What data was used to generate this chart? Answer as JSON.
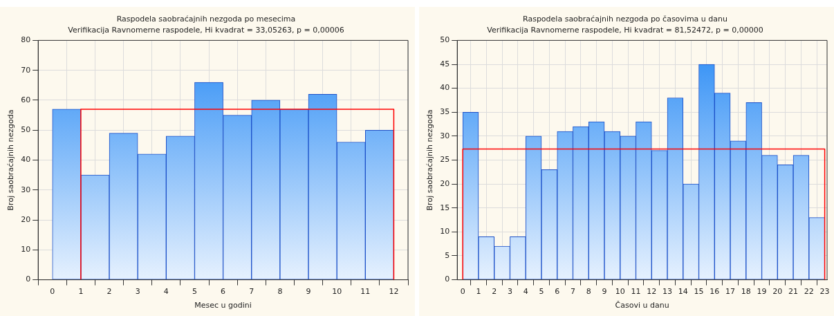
{
  "chart_data": [
    {
      "type": "histogram",
      "title": "Raspodela saobraćajnih nezgoda po mesecima",
      "subtitle": "Verifikacija Ravnomerne raspodele, Hi kvadrat = 33,05263, p = 0,00006",
      "xlabel": "Mesec u godini",
      "ylabel": "Broj saobraćajnih nezgoda",
      "bins": [
        0,
        1,
        2,
        3,
        4,
        5,
        6,
        7,
        8,
        9,
        10,
        11,
        12
      ],
      "series": [
        {
          "color": "#2b8cf5",
          "values": [
            57,
            35,
            49,
            42,
            48,
            66,
            55,
            60,
            57,
            62,
            46,
            50
          ]
        },
        {
          "type": "line",
          "color": "#ff0000",
          "x": [
            1,
            1,
            12,
            12
          ],
          "values": [
            0,
            57,
            57,
            0
          ]
        }
      ],
      "xlim": [
        -0.5,
        12.5
      ],
      "xticks": [
        0,
        1,
        2,
        3,
        4,
        5,
        6,
        7,
        8,
        9,
        10,
        11,
        12
      ],
      "ylim": [
        0,
        80
      ],
      "yticks": [
        0,
        10,
        20,
        30,
        40,
        50,
        60,
        70,
        80
      ],
      "grid": true,
      "legend": false
    },
    {
      "type": "histogram",
      "title": "Raspodela saobraćajnih nezgoda po časovima u danu",
      "subtitle": "Verifikacija Ravnomerne raspodele, Hi kvadrat = 81,52472, p = 0,00000",
      "xlabel": "Časovi u danu",
      "ylabel": "Broj saobraćajnih nezgoda",
      "bins": [
        0,
        1,
        2,
        3,
        4,
        5,
        6,
        7,
        8,
        9,
        10,
        11,
        12,
        13,
        14,
        15,
        16,
        17,
        18,
        19,
        20,
        21,
        22,
        23
      ],
      "series": [
        {
          "color": "#2b8cf5",
          "values": [
            35,
            9,
            7,
            9,
            30,
            23,
            31,
            32,
            33,
            31,
            30,
            33,
            27,
            38,
            20,
            45,
            39,
            29,
            37,
            26,
            24,
            26,
            13
          ]
        },
        {
          "type": "line",
          "color": "#ff0000",
          "x": [
            0,
            0,
            23,
            23
          ],
          "values": [
            0,
            27.3,
            27.3,
            0
          ]
        }
      ],
      "xlim": [
        -0.35,
        23.15
      ],
      "xticks": [
        0,
        1,
        2,
        3,
        4,
        5,
        6,
        7,
        8,
        9,
        10,
        11,
        12,
        13,
        14,
        15,
        16,
        17,
        18,
        19,
        20,
        21,
        22,
        23
      ],
      "ylim": [
        0,
        50
      ],
      "yticks": [
        0,
        5,
        10,
        15,
        20,
        25,
        30,
        35,
        40,
        45,
        50
      ],
      "grid": true,
      "legend": false
    }
  ]
}
